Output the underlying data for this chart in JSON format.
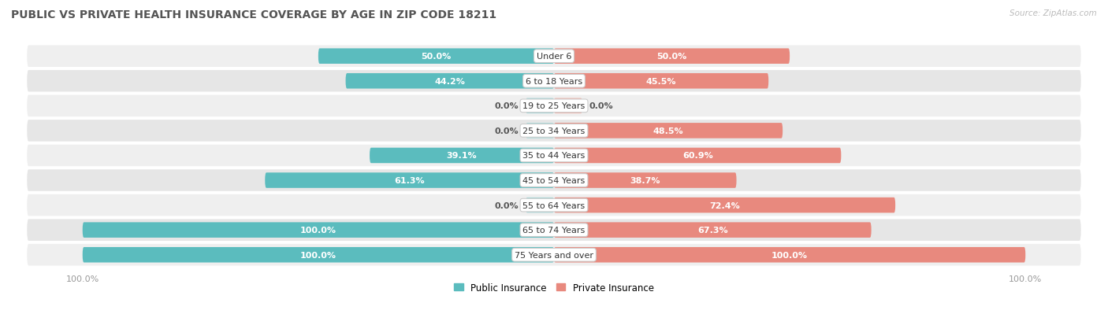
{
  "title": "PUBLIC VS PRIVATE HEALTH INSURANCE COVERAGE BY AGE IN ZIP CODE 18211",
  "source": "Source: ZipAtlas.com",
  "categories": [
    "Under 6",
    "6 to 18 Years",
    "19 to 25 Years",
    "25 to 34 Years",
    "35 to 44 Years",
    "45 to 54 Years",
    "55 to 64 Years",
    "65 to 74 Years",
    "75 Years and over"
  ],
  "public_values": [
    50.0,
    44.2,
    0.0,
    0.0,
    39.1,
    61.3,
    0.0,
    100.0,
    100.0
  ],
  "private_values": [
    50.0,
    45.5,
    0.0,
    48.5,
    60.9,
    38.7,
    72.4,
    67.3,
    100.0
  ],
  "public_color": "#5bbcbe",
  "public_color_light": "#a8d9da",
  "private_color": "#e8897e",
  "private_color_light": "#f0b8b0",
  "public_label": "Public Insurance",
  "private_label": "Private Insurance",
  "row_bg_color_odd": "#efefef",
  "row_bg_color_even": "#e6e6e6",
  "label_color_light": "#ffffff",
  "label_color_dark": "#555555",
  "title_color": "#555555",
  "axis_label_color": "#999999",
  "max_value": 100.0,
  "min_bar_pct": 6.0,
  "bar_height": 0.62,
  "figsize": [
    14.06,
    4.14
  ],
  "dpi": 100
}
